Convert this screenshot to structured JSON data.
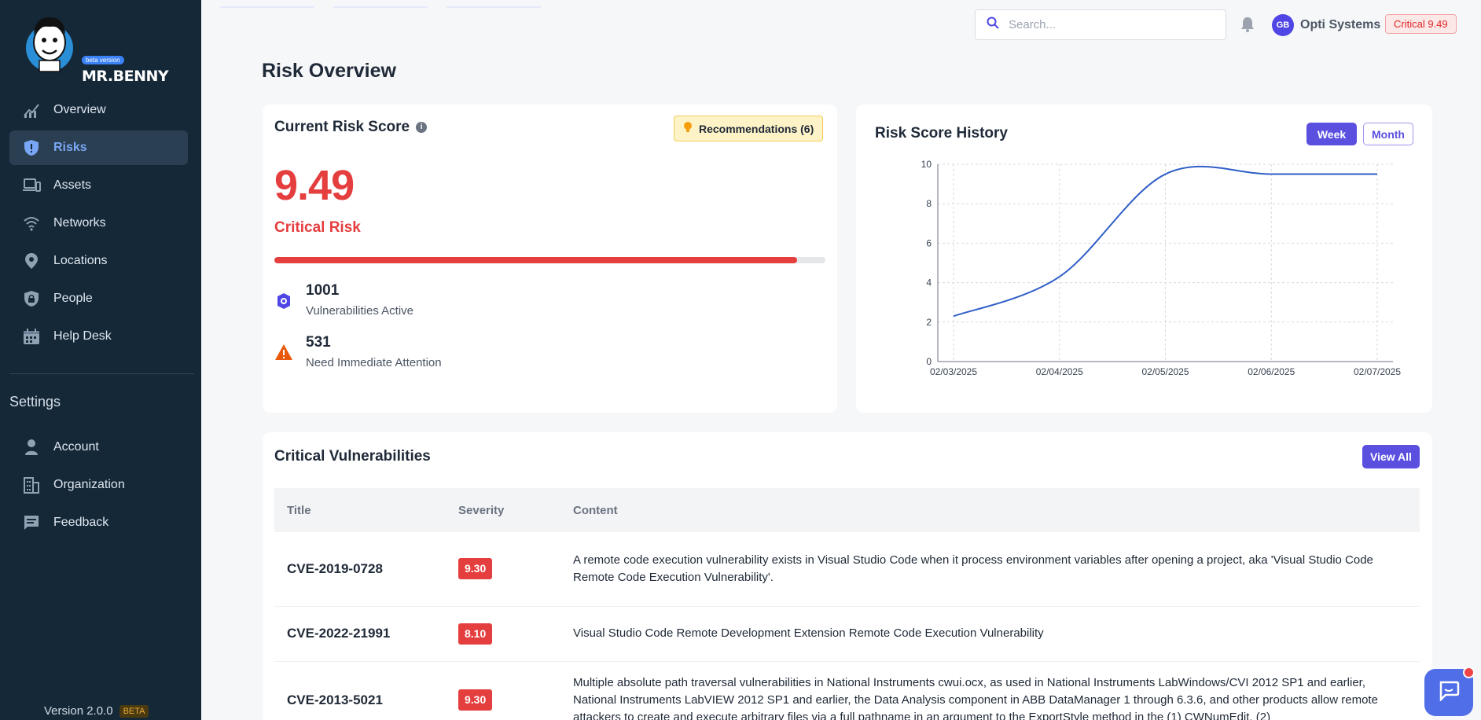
{
  "brand": {
    "beta_label": "beta version",
    "name": "MR.BENNY"
  },
  "sidebar": {
    "items": [
      {
        "label": "Overview",
        "icon": "chart-line-icon"
      },
      {
        "label": "Risks",
        "icon": "shield-icon",
        "active": true
      },
      {
        "label": "Assets",
        "icon": "devices-icon"
      },
      {
        "label": "Networks",
        "icon": "wifi-icon"
      },
      {
        "label": "Locations",
        "icon": "map-pin-icon"
      },
      {
        "label": "People",
        "icon": "lock-shield-icon"
      },
      {
        "label": "Help Desk",
        "icon": "calendar-icon"
      }
    ],
    "settings_heading": "Settings",
    "settings_items": [
      {
        "label": "Account",
        "icon": "user-icon"
      },
      {
        "label": "Organization",
        "icon": "building-icon"
      },
      {
        "label": "Feedback",
        "icon": "chat-icon"
      }
    ],
    "version": "Version 2.0.0",
    "version_tag": "BETA"
  },
  "header": {
    "search_placeholder": "Search...",
    "avatar_initials": "GB",
    "org_name": "Opti Systems",
    "critical_badge": "Critical 9.49"
  },
  "page": {
    "title": "Risk Overview"
  },
  "risk_card": {
    "title": "Current Risk Score",
    "recommendations_label": "Recommendations (6)",
    "score": "9.49",
    "level": "Critical Risk",
    "progress_fraction": 0.949,
    "stats": [
      {
        "value": "1001",
        "label": "Vulnerabilities Active",
        "icon": "bug-icon"
      },
      {
        "value": "531",
        "label": "Need Immediate Attention",
        "icon": "warning-icon"
      }
    ]
  },
  "history_card": {
    "title": "Risk Score History",
    "week_label": "Week",
    "month_label": "Month"
  },
  "chart_data": {
    "type": "line",
    "x": [
      "02/03/2025",
      "02/04/2025",
      "02/05/2025",
      "02/06/2025",
      "02/07/2025"
    ],
    "series": [
      {
        "values": [
          2.3,
          4.3,
          9.5,
          9.5,
          9.5
        ]
      }
    ],
    "ylim": [
      0,
      10
    ],
    "yticks": [
      0,
      2,
      4,
      6,
      8,
      10
    ],
    "grid": true,
    "color": "#2f5fc7"
  },
  "vulns": {
    "title": "Critical Vulnerabilities",
    "view_all": "View All",
    "columns": [
      "Title",
      "Severity",
      "Content"
    ],
    "rows": [
      {
        "id": "CVE-2019-0728",
        "severity": "9.30",
        "content": "A remote code execution vulnerability exists in Visual Studio Code when it process environment variables after opening a project, aka 'Visual Studio Code Remote Code Execution Vulnerability'."
      },
      {
        "id": "CVE-2022-21991",
        "severity": "8.10",
        "content": "Visual Studio Code Remote Development Extension Remote Code Execution Vulnerability"
      },
      {
        "id": "CVE-2013-5021",
        "severity": "9.30",
        "content": "Multiple absolute path traversal vulnerabilities in National Instruments cwui.ocx, as used in National Instruments LabWindows/CVI 2012 SP1 and earlier, National Instruments LabVIEW 2012 SP1 and earlier, the Data Analysis component in ABB DataManager 1 through 6.3.6, and other products allow remote attackers to create and execute arbitrary files via a full pathname in an argument to the ExportStyle method in the (1) CWNumEdit, (2)"
      }
    ]
  }
}
